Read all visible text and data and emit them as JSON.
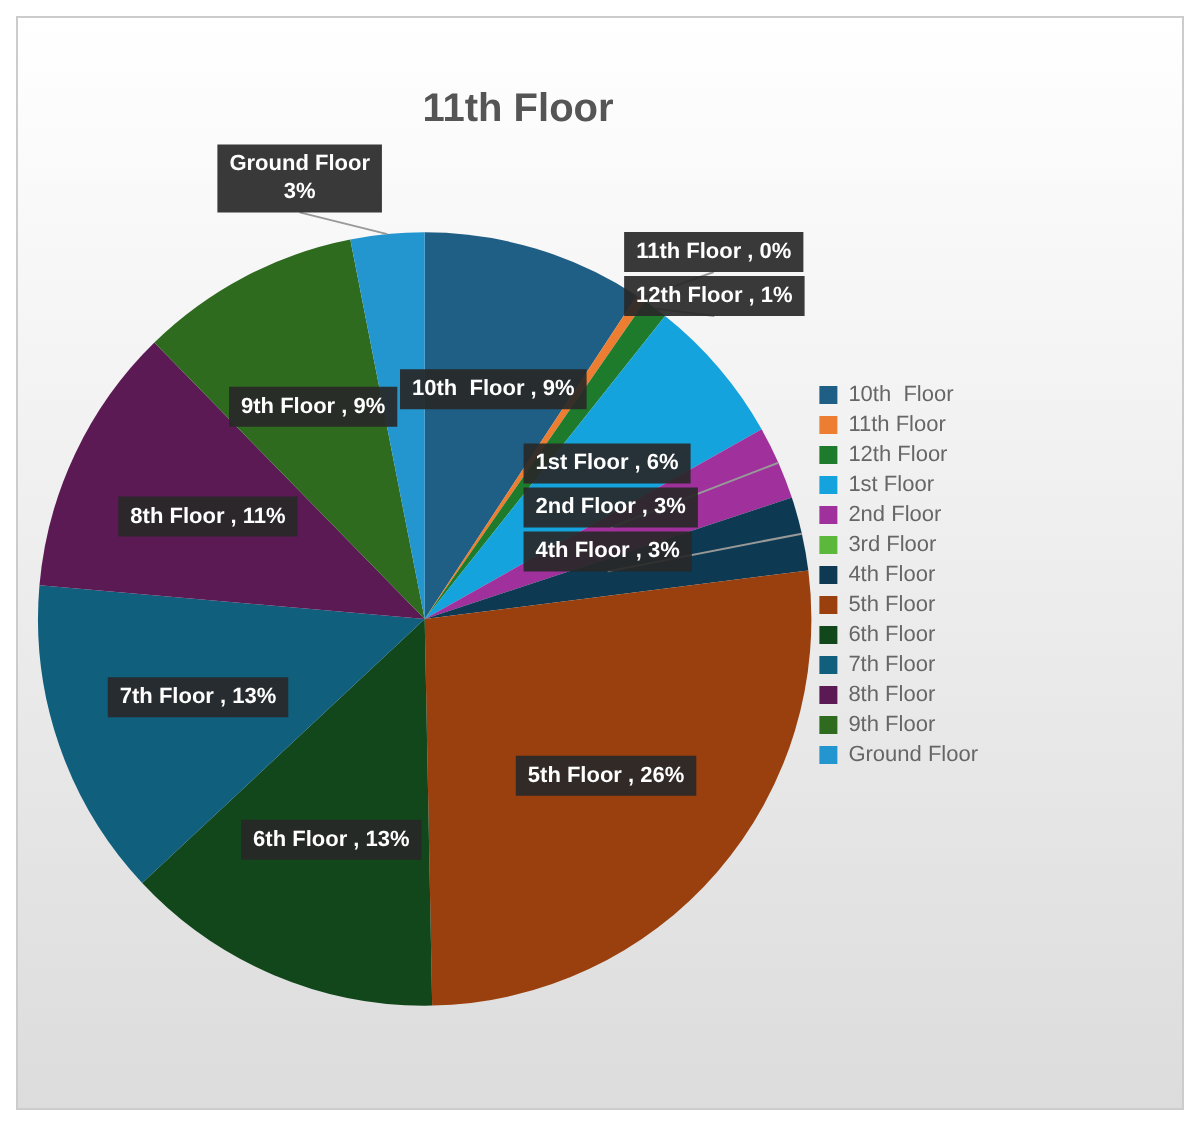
{
  "chart_data": {
    "type": "pie",
    "title": "11th Floor",
    "categories": [
      "10th  Floor",
      "11th Floor",
      "12th Floor",
      "1st Floor",
      "2nd Floor",
      "3rd Floor",
      "4th Floor",
      "5th Floor",
      "6th Floor",
      "7th Floor",
      "8th Floor",
      "9th Floor",
      "Ground Floor"
    ],
    "values": [
      9,
      0.4,
      1,
      6,
      3,
      0,
      3,
      26,
      13,
      13,
      11,
      9,
      3
    ],
    "colors": [
      "#1f5f85",
      "#ed7d31",
      "#1e7b2c",
      "#14a3dc",
      "#a0309c",
      "#5cb83b",
      "#0d3a52",
      "#9a3f0e",
      "#12471c",
      "#0f5f7d",
      "#5c1a55",
      "#2e6b1f",
      "#2395cf"
    ],
    "value_labels": [
      "10th  Floor , 9%",
      "11th Floor , 0%",
      "12th Floor , 1%",
      "1st Floor , 6%",
      "2nd Floor , 3%",
      null,
      "4th Floor , 3%",
      "5th Floor , 26%",
      "6th Floor , 13%",
      "7th Floor , 13%",
      "8th Floor , 11%",
      "9th Floor , 9%",
      "Ground Floor\n3%"
    ],
    "legend": "right"
  }
}
